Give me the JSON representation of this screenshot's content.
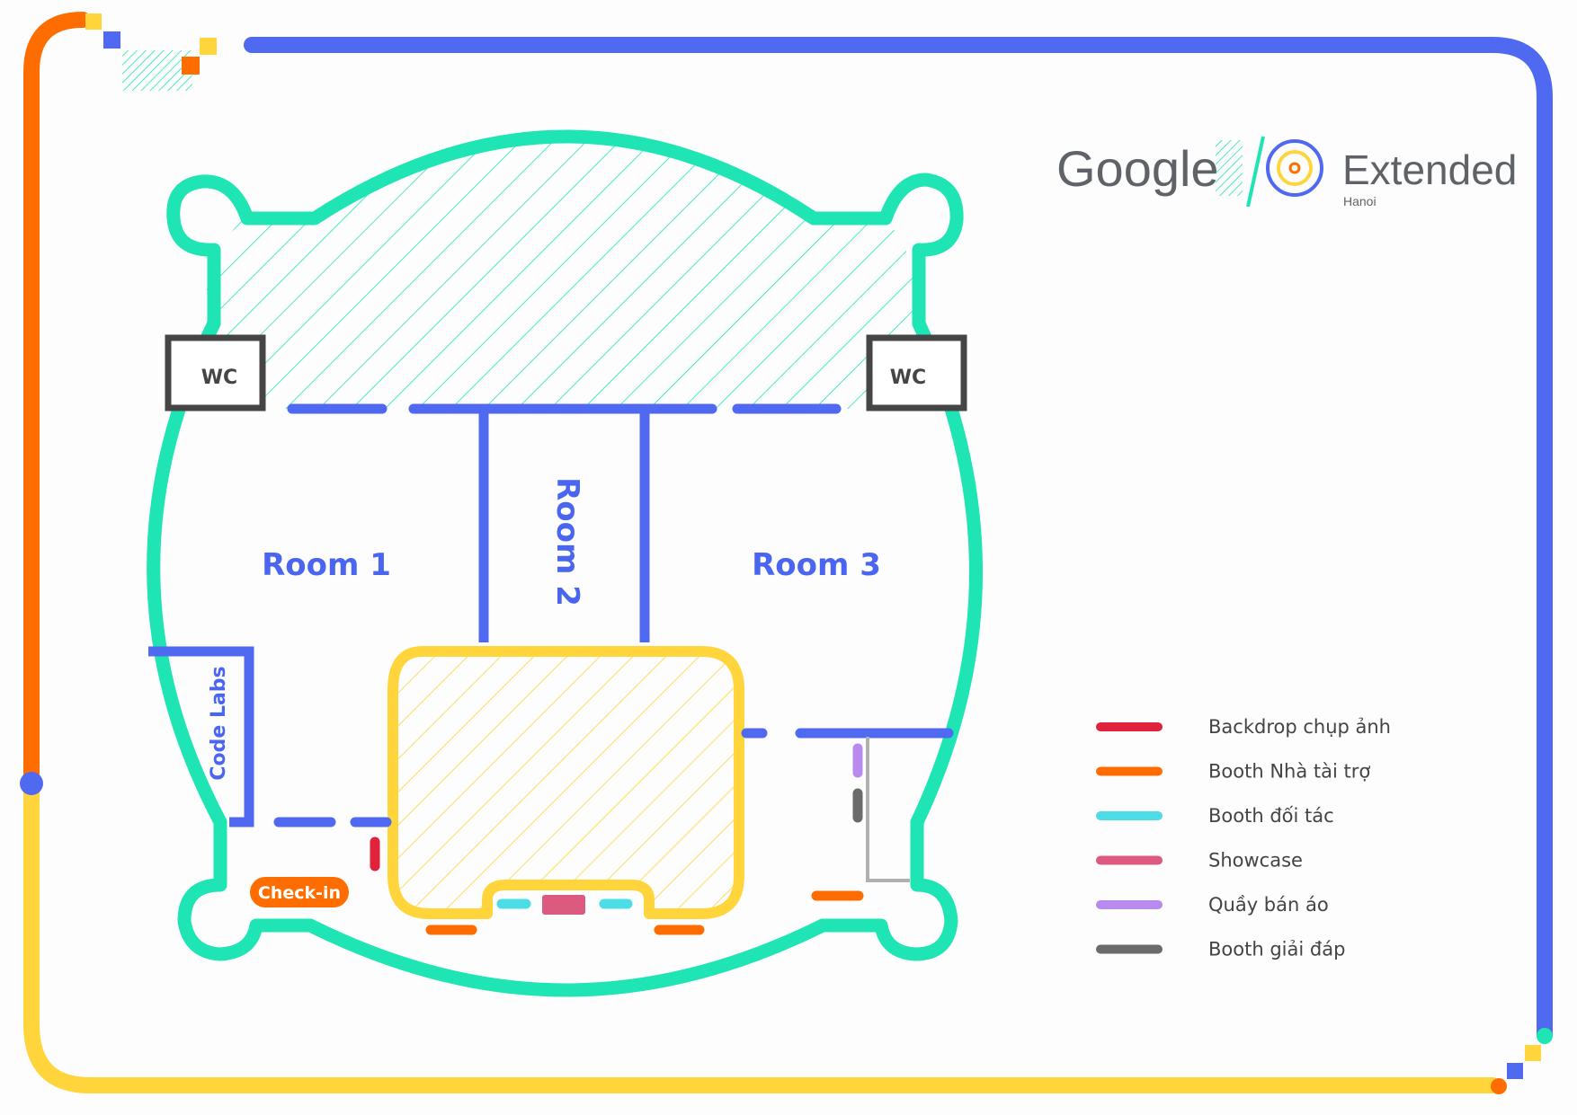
{
  "rooms": {
    "room1": "Room 1",
    "room2": "Room 2",
    "room3": "Room 3",
    "wc_left": "WC",
    "wc_right": "WC",
    "code_labs": "Code Labs",
    "check_in": "Check-in"
  },
  "logo": {
    "google": "Google",
    "extended": "Extended",
    "city": "Hanoi"
  },
  "legend": [
    {
      "label": "Backdrop chụp ảnh",
      "color": "#e0223c"
    },
    {
      "label": "Booth Nhà tài trợ",
      "color": "#ff6d00"
    },
    {
      "label": "Booth đối tác",
      "color": "#4ddde6"
    },
    {
      "label": "Showcase",
      "color": "#dc5a80"
    },
    {
      "label": "Quầy bán áo",
      "color": "#b98aee"
    },
    {
      "label": "Booth giải đáp",
      "color": "#6b6b6b"
    }
  ],
  "colors": {
    "wall": "#1fe4b4",
    "room": "#4f6af0",
    "stage": "#ffd53b",
    "border_blue": "#4f6af0",
    "border_orange": "#ff6d00",
    "border_yellow": "#ffd53b",
    "wc": "#454545"
  }
}
